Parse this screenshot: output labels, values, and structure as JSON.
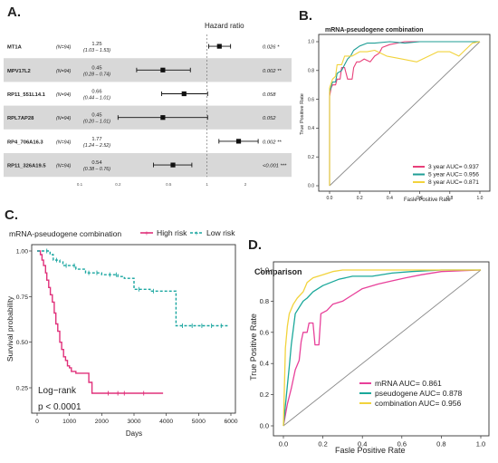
{
  "panels": {
    "a": "A.",
    "b": "B.",
    "c": "C.",
    "d": "D."
  },
  "chart_data": [
    {
      "type": "forest",
      "title": "Hazard ratio",
      "rows": [
        {
          "gene": "MT1A",
          "n": "(N=94)",
          "hr": 1.25,
          "ci": "(1.03 – 1.53)",
          "lo": 1.03,
          "hi": 1.53,
          "p": "0.026 *"
        },
        {
          "gene": "MPV17L2",
          "n": "(N=94)",
          "hr": 0.45,
          "ci": "(0.28 – 0.74)",
          "lo": 0.28,
          "hi": 0.74,
          "p": "0.002 **"
        },
        {
          "gene": "RP11_551L14.1",
          "n": "(N=94)",
          "hr": 0.66,
          "ci": "(0.44 – 1.01)",
          "lo": 0.44,
          "hi": 1.01,
          "p": "0.058"
        },
        {
          "gene": "RPL7AP28",
          "n": "(N=94)",
          "hr": 0.45,
          "ci": "(0.20 – 1.01)",
          "lo": 0.2,
          "hi": 1.01,
          "p": "0.052"
        },
        {
          "gene": "RP4_706A16.3",
          "n": "(N=94)",
          "hr": 1.77,
          "ci": "(1.24 – 2.52)",
          "lo": 1.24,
          "hi": 2.52,
          "p": "0.002 **"
        },
        {
          "gene": "RP11_326A19.5",
          "n": "(N=94)",
          "hr": 0.54,
          "ci": "(0.38 – 0.76)",
          "lo": 0.38,
          "hi": 0.76,
          "p": "<0.001 ***"
        }
      ],
      "xticks": [
        "0.1",
        "0.2",
        "0.5",
        "1",
        "2"
      ],
      "log_scale": true
    },
    {
      "type": "line",
      "title": "mRNA-pseudogene combination",
      "xlabel": "Fasle Positive Rate",
      "ylabel": "True Positive Rate",
      "xticks": [
        "0.0",
        "0.2",
        "0.4",
        "0.6",
        "0.8",
        "1.0"
      ],
      "yticks": [
        "0.0",
        "0.2",
        "0.4",
        "0.6",
        "0.8",
        "1.0"
      ],
      "xlim": [
        0,
        1
      ],
      "ylim": [
        0,
        1
      ],
      "series": [
        {
          "name": "3 year AUC= 0.937",
          "color": "#e8407a",
          "points": [
            [
              0,
              0
            ],
            [
              0,
              0.62
            ],
            [
              0.01,
              0.68
            ],
            [
              0.02,
              0.7
            ],
            [
              0.04,
              0.7
            ],
            [
              0.05,
              0.74
            ],
            [
              0.07,
              0.74
            ],
            [
              0.08,
              0.82
            ],
            [
              0.1,
              0.82
            ],
            [
              0.12,
              0.74
            ],
            [
              0.15,
              0.74
            ],
            [
              0.16,
              0.82
            ],
            [
              0.18,
              0.86
            ],
            [
              0.2,
              0.86
            ],
            [
              0.23,
              0.88
            ],
            [
              0.27,
              0.86
            ],
            [
              0.3,
              0.9
            ],
            [
              0.33,
              0.92
            ],
            [
              0.35,
              0.96
            ],
            [
              0.4,
              0.98
            ],
            [
              0.5,
              1
            ],
            [
              1,
              1
            ]
          ]
        },
        {
          "name": "5 year AUC= 0.956",
          "color": "#1f9e96",
          "points": [
            [
              0,
              0
            ],
            [
              0,
              0.65
            ],
            [
              0.02,
              0.72
            ],
            [
              0.04,
              0.72
            ],
            [
              0.05,
              0.78
            ],
            [
              0.08,
              0.8
            ],
            [
              0.1,
              0.84
            ],
            [
              0.12,
              0.88
            ],
            [
              0.14,
              0.9
            ],
            [
              0.16,
              0.94
            ],
            [
              0.2,
              0.97
            ],
            [
              0.25,
              0.99
            ],
            [
              0.3,
              0.99
            ],
            [
              0.4,
              1
            ],
            [
              0.5,
              0.99
            ],
            [
              0.6,
              1
            ],
            [
              0.8,
              1
            ],
            [
              1,
              1
            ]
          ]
        },
        {
          "name": "8 year AUC= 0.871",
          "color": "#f2d33c",
          "points": [
            [
              0,
              0
            ],
            [
              0,
              0.68
            ],
            [
              0.02,
              0.74
            ],
            [
              0.04,
              0.76
            ],
            [
              0.05,
              0.84
            ],
            [
              0.08,
              0.84
            ],
            [
              0.1,
              0.9
            ],
            [
              0.15,
              0.9
            ],
            [
              0.2,
              0.93
            ],
            [
              0.25,
              0.93
            ],
            [
              0.3,
              0.94
            ],
            [
              0.38,
              0.9
            ],
            [
              0.48,
              0.88
            ],
            [
              0.58,
              0.86
            ],
            [
              0.66,
              0.9
            ],
            [
              0.72,
              0.93
            ],
            [
              0.8,
              0.93
            ],
            [
              0.86,
              0.9
            ],
            [
              0.9,
              0.94
            ],
            [
              0.95,
              0.99
            ],
            [
              1,
              1
            ]
          ]
        }
      ]
    },
    {
      "type": "line",
      "title": "mRNA-pseudogene combination",
      "xlabel": "Days",
      "ylabel": "Survival probability",
      "xticks": [
        "0",
        "1000",
        "2000",
        "3000",
        "4000",
        "5000",
        "6000"
      ],
      "yticks": [
        "0.25",
        "0.50",
        "0.75",
        "1.00"
      ],
      "xlim": [
        0,
        6000
      ],
      "ylim": [
        0.1,
        1.02
      ],
      "annotation": [
        "Log−rank",
        "p < 0.0001"
      ],
      "series": [
        {
          "name": "High risk",
          "color": "#e0307a",
          "dash": false,
          "points": [
            [
              0,
              1
            ],
            [
              80,
              1
            ],
            [
              100,
              0.98
            ],
            [
              150,
              0.95
            ],
            [
              200,
              0.92
            ],
            [
              260,
              0.88
            ],
            [
              300,
              0.84
            ],
            [
              360,
              0.8
            ],
            [
              410,
              0.76
            ],
            [
              470,
              0.72
            ],
            [
              530,
              0.66
            ],
            [
              580,
              0.6
            ],
            [
              640,
              0.56
            ],
            [
              700,
              0.5
            ],
            [
              760,
              0.46
            ],
            [
              820,
              0.42
            ],
            [
              880,
              0.4
            ],
            [
              940,
              0.37
            ],
            [
              1000,
              0.36
            ],
            [
              1060,
              0.34
            ],
            [
              1200,
              0.33
            ],
            [
              1400,
              0.33
            ],
            [
              1600,
              0.28
            ],
            [
              1700,
              0.22
            ],
            [
              2500,
              0.22
            ],
            [
              3900,
              0.22
            ]
          ],
          "censor": [
            2200,
            2500,
            2700,
            3300
          ]
        },
        {
          "name": "Low risk",
          "color": "#1aa6a0",
          "dash": true,
          "points": [
            [
              0,
              1
            ],
            [
              400,
              0.98
            ],
            [
              500,
              0.95
            ],
            [
              700,
              0.94
            ],
            [
              800,
              0.92
            ],
            [
              1000,
              0.92
            ],
            [
              1200,
              0.9
            ],
            [
              1500,
              0.88
            ],
            [
              2000,
              0.87
            ],
            [
              2500,
              0.86
            ],
            [
              2700,
              0.85
            ],
            [
              3000,
              0.79
            ],
            [
              3500,
              0.78
            ],
            [
              4300,
              0.78
            ],
            [
              4300,
              0.59
            ],
            [
              5900,
              0.59
            ]
          ],
          "censor": [
            300,
            600,
            900,
            1150,
            1600,
            1850,
            2250,
            2450,
            3150,
            3600,
            4500,
            4800,
            5100,
            5400,
            5700
          ]
        }
      ]
    },
    {
      "type": "line",
      "title": "Comparison",
      "xlabel": "Fasle Positive Rate",
      "ylabel": "True Positive Rate",
      "xticks": [
        "0.0",
        "0.2",
        "0.4",
        "0.6",
        "0.8",
        "1.0"
      ],
      "yticks": [
        "0.0",
        "0.2",
        "0.4",
        "0.6",
        "0.8",
        "1.0"
      ],
      "xlim": [
        0,
        1
      ],
      "ylim": [
        0,
        1
      ],
      "series": [
        {
          "name": "mRNA AUC= 0.861",
          "color": "#e8409a",
          "points": [
            [
              0,
              0
            ],
            [
              0.02,
              0.14
            ],
            [
              0.04,
              0.24
            ],
            [
              0.06,
              0.36
            ],
            [
              0.08,
              0.42
            ],
            [
              0.09,
              0.54
            ],
            [
              0.1,
              0.6
            ],
            [
              0.12,
              0.6
            ],
            [
              0.13,
              0.66
            ],
            [
              0.15,
              0.66
            ],
            [
              0.16,
              0.52
            ],
            [
              0.18,
              0.52
            ],
            [
              0.19,
              0.72
            ],
            [
              0.22,
              0.74
            ],
            [
              0.25,
              0.78
            ],
            [
              0.3,
              0.8
            ],
            [
              0.35,
              0.84
            ],
            [
              0.4,
              0.88
            ],
            [
              0.48,
              0.91
            ],
            [
              0.55,
              0.93
            ],
            [
              0.62,
              0.95
            ],
            [
              0.7,
              0.97
            ],
            [
              0.8,
              0.99
            ],
            [
              1,
              1
            ]
          ]
        },
        {
          "name": "pseudogene AUC= 0.878",
          "color": "#1aa89a",
          "points": [
            [
              0,
              0
            ],
            [
              0.02,
              0.26
            ],
            [
              0.03,
              0.38
            ],
            [
              0.04,
              0.52
            ],
            [
              0.05,
              0.62
            ],
            [
              0.06,
              0.72
            ],
            [
              0.08,
              0.76
            ],
            [
              0.1,
              0.8
            ],
            [
              0.12,
              0.82
            ],
            [
              0.15,
              0.86
            ],
            [
              0.2,
              0.9
            ],
            [
              0.28,
              0.94
            ],
            [
              0.35,
              0.96
            ],
            [
              0.45,
              0.96
            ],
            [
              0.55,
              0.98
            ],
            [
              0.65,
              0.99
            ],
            [
              0.8,
              1
            ],
            [
              1,
              1
            ]
          ]
        },
        {
          "name": "combination AUC= 0.956",
          "color": "#f2d33c",
          "points": [
            [
              0,
              0
            ],
            [
              0.01,
              0.5
            ],
            [
              0.02,
              0.64
            ],
            [
              0.03,
              0.72
            ],
            [
              0.05,
              0.78
            ],
            [
              0.07,
              0.82
            ],
            [
              0.1,
              0.86
            ],
            [
              0.12,
              0.92
            ],
            [
              0.15,
              0.95
            ],
            [
              0.2,
              0.97
            ],
            [
              0.25,
              0.99
            ],
            [
              0.3,
              1
            ],
            [
              0.5,
              1
            ],
            [
              1,
              1
            ]
          ]
        }
      ]
    }
  ]
}
